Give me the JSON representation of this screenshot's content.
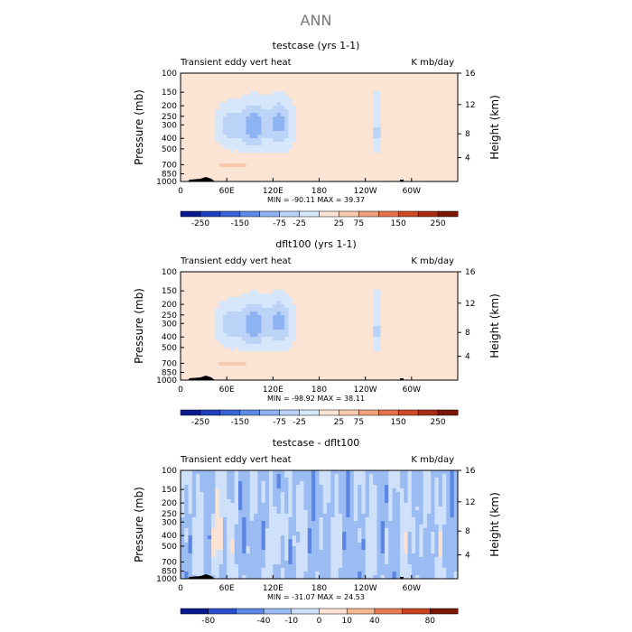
{
  "page_title": "ANN",
  "panels": [
    {
      "title": "testcase (yrs 1-1)",
      "left_label": "Transient eddy vert heat",
      "right_label": "K mb/day",
      "stats": "MIN = -90.11   MAX =  39.37",
      "colorbar_labels": [
        "-250",
        "-150",
        "-75",
        "-25",
        "25",
        "75",
        "150",
        "250"
      ],
      "field_kind": "mean"
    },
    {
      "title": "dflt100 (yrs 1-1)",
      "left_label": "Transient eddy vert heat",
      "right_label": "K mb/day",
      "stats": "MIN = -98.92   MAX =  38.11",
      "colorbar_labels": [
        "-250",
        "-150",
        "-75",
        "-25",
        "25",
        "75",
        "150",
        "250"
      ],
      "field_kind": "mean"
    },
    {
      "title": "testcase - dflt100",
      "left_label": "Transient eddy vert heat",
      "right_label": "K mb/day",
      "stats": "MIN = -31.07   MAX =  24.53",
      "colorbar_labels": [
        "-80",
        "-40",
        "-10",
        "0",
        "10",
        "40",
        "80"
      ],
      "field_kind": "diff"
    }
  ],
  "axes": {
    "xlabel": "",
    "ylabel_left": "Pressure  (mb)",
    "ylabel_right": "Height  (km)",
    "x_ticks": [
      "0",
      "60E",
      "120E",
      "180",
      "120W",
      "60W"
    ],
    "y_ticks_left": [
      "100",
      "150",
      "200",
      "250",
      "300",
      "400",
      "500",
      "700",
      "850",
      "1000"
    ],
    "y_ticks_right": [
      "16",
      "12",
      "8",
      "4"
    ]
  },
  "colors": {
    "mean_palette": [
      "#0a1a8c",
      "#1f3fbf",
      "#3a64d6",
      "#5e8ae6",
      "#8eb2f2",
      "#bcd3f8",
      "#d6e6fb",
      "#fbe4d4",
      "#f7c9ad",
      "#f0a07a",
      "#e3724d",
      "#cc4a26",
      "#a82c12",
      "#7a1606"
    ],
    "diff_palette": [
      "#0a1a8c",
      "#2a4dcc",
      "#5b86e3",
      "#9bbcf3",
      "#cfe0fa",
      "#fbe2d2",
      "#f4b893",
      "#e67a52",
      "#c8421f",
      "#7a1606"
    ]
  },
  "chart_data": [
    {
      "type": "heatmap",
      "title": "testcase (yrs 1-1)",
      "field": "Transient eddy vert heat",
      "units": "K mb/day",
      "x": [
        "0",
        "60E",
        "120E",
        "180",
        "120W",
        "60W"
      ],
      "y_pressure_mb": [
        100,
        150,
        200,
        250,
        300,
        400,
        500,
        700,
        850,
        1000
      ],
      "y_height_km": [
        16,
        12,
        8,
        4
      ],
      "min": -90.11,
      "max": 39.37,
      "contour_levels": [
        -250,
        -200,
        -150,
        -100,
        -75,
        -50,
        -25,
        25,
        50,
        75,
        100,
        150,
        200,
        250
      ]
    },
    {
      "type": "heatmap",
      "title": "dflt100 (yrs 1-1)",
      "field": "Transient eddy vert heat",
      "units": "K mb/day",
      "x": [
        "0",
        "60E",
        "120E",
        "180",
        "120W",
        "60W"
      ],
      "y_pressure_mb": [
        100,
        150,
        200,
        250,
        300,
        400,
        500,
        700,
        850,
        1000
      ],
      "y_height_km": [
        16,
        12,
        8,
        4
      ],
      "min": -98.92,
      "max": 38.11,
      "contour_levels": [
        -250,
        -200,
        -150,
        -100,
        -75,
        -50,
        -25,
        25,
        50,
        75,
        100,
        150,
        200,
        250
      ]
    },
    {
      "type": "heatmap",
      "title": "testcase - dflt100",
      "field": "Transient eddy vert heat",
      "units": "K mb/day",
      "x": [
        "0",
        "60E",
        "120E",
        "180",
        "120W",
        "60W"
      ],
      "y_pressure_mb": [
        100,
        150,
        200,
        250,
        300,
        400,
        500,
        700,
        850,
        1000
      ],
      "y_height_km": [
        16,
        12,
        8,
        4
      ],
      "min": -31.07,
      "max": 24.53,
      "contour_levels": [
        -80,
        -40,
        -10,
        0,
        10,
        40,
        80
      ]
    }
  ]
}
